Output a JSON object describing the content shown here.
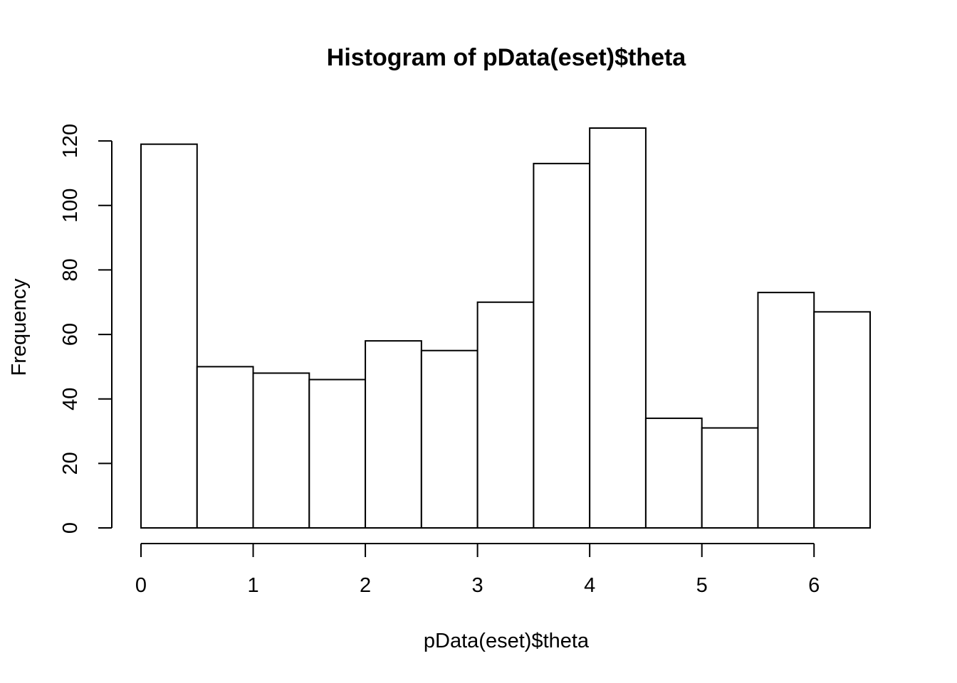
{
  "chart_data": {
    "type": "bar",
    "subtype": "histogram",
    "title": "Histogram of pData(eset)$theta",
    "xlabel": "pData(eset)$theta",
    "ylabel": "Frequency",
    "bin_width": 0.5,
    "bins": [
      {
        "start": 0.0,
        "end": 0.5,
        "value": 119
      },
      {
        "start": 0.5,
        "end": 1.0,
        "value": 50
      },
      {
        "start": 1.0,
        "end": 1.5,
        "value": 48
      },
      {
        "start": 1.5,
        "end": 2.0,
        "value": 46
      },
      {
        "start": 2.0,
        "end": 2.5,
        "value": 58
      },
      {
        "start": 2.5,
        "end": 3.0,
        "value": 55
      },
      {
        "start": 3.0,
        "end": 3.5,
        "value": 70
      },
      {
        "start": 3.5,
        "end": 4.0,
        "value": 113
      },
      {
        "start": 4.0,
        "end": 4.5,
        "value": 124
      },
      {
        "start": 4.5,
        "end": 5.0,
        "value": 34
      },
      {
        "start": 5.0,
        "end": 5.5,
        "value": 31
      },
      {
        "start": 5.5,
        "end": 6.0,
        "value": 73
      },
      {
        "start": 6.0,
        "end": 6.5,
        "value": 67
      }
    ],
    "xlim": [
      0,
      6.5
    ],
    "ylim": [
      0,
      124
    ],
    "x_ticks": [
      "0",
      "1",
      "2",
      "3",
      "4",
      "5",
      "6"
    ],
    "y_ticks": [
      "0",
      "20",
      "40",
      "60",
      "80",
      "100",
      "120"
    ],
    "grid": false,
    "bar_fill": "#ffffff",
    "bar_stroke": "#000000"
  }
}
